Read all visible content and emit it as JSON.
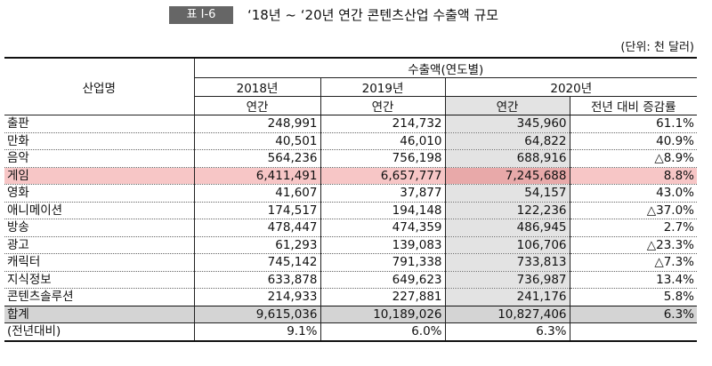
{
  "header": {
    "badge": "표 Ⅰ-6",
    "title": "‘18년 ~ ‘20년 연간 콘텐츠산업 수출액 규모",
    "unit": "(단위: 천 달러)"
  },
  "table": {
    "head": {
      "industry": "산업명",
      "group": "수출액(연도별)",
      "years": [
        "2018년",
        "2019년",
        "2020년"
      ],
      "sub": [
        "연간",
        "연간",
        "연간",
        "전년 대비 증감률"
      ]
    },
    "rows": [
      [
        "출판",
        "248,991",
        "214,732",
        "345,960",
        "61.1%"
      ],
      [
        "만화",
        "40,501",
        "46,010",
        "64,822",
        "40.9%"
      ],
      [
        "음악",
        "564,236",
        "756,198",
        "688,916",
        "△8.9%"
      ],
      [
        "게임",
        "6,411,491",
        "6,657,777",
        "7,245,688",
        "8.8%"
      ],
      [
        "영화",
        "41,607",
        "37,877",
        "54,157",
        "43.0%"
      ],
      [
        "애니메이션",
        "174,517",
        "194,148",
        "122,236",
        "△37.0%"
      ],
      [
        "방송",
        "478,447",
        "474,359",
        "486,945",
        "2.7%"
      ],
      [
        "광고",
        "61,293",
        "139,083",
        "106,706",
        "△23.3%"
      ],
      [
        "캐릭터",
        "745,142",
        "791,338",
        "733,813",
        "△7.3%"
      ],
      [
        "지식정보",
        "633,878",
        "649,623",
        "736,987",
        "13.4%"
      ],
      [
        "콘텐츠솔루션",
        "214,933",
        "227,881",
        "241,176",
        "5.8%"
      ],
      [
        "합계",
        "9,615,036",
        "10,189,026",
        "10,827,406",
        "6.3%"
      ],
      [
        "(전년대비)",
        "9.1%",
        "6.0%",
        "6.3%"
      ]
    ]
  }
}
